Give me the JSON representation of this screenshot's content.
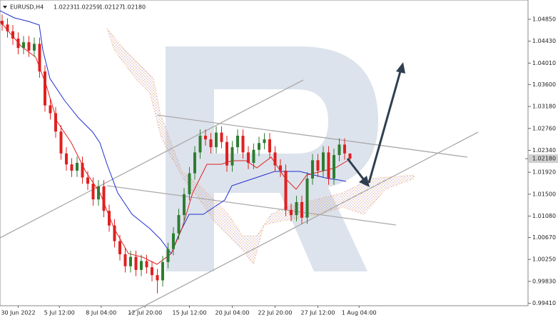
{
  "chart_data": {
    "type": "candlestick",
    "title": "EURUSD,H4",
    "quote": [
      "1.02231",
      "1.02259",
      "1.02127",
      "1.02180"
    ],
    "open": [
      1.0482,
      1.0475,
      1.0462,
      1.0448,
      1.043,
      1.0441,
      1.0425,
      1.0438,
      1.0385,
      1.032,
      1.0305,
      1.027,
      1.0228,
      1.0207,
      1.0195,
      1.021,
      1.0182,
      1.017,
      1.014,
      1.0165,
      1.0118,
      1.009,
      1.006,
      1.0035,
      1.0012,
      1.003,
      1.0005,
      1.0022,
      1.001,
      0.9995,
      0.9985,
      1.002,
      1.0045,
      1.0075,
      1.011,
      1.015,
      1.019,
      1.023,
      1.0262,
      1.0255,
      1.024,
      1.0268,
      1.025,
      1.0205,
      1.024,
      1.0262,
      1.023,
      1.021,
      1.0235,
      1.0248,
      1.0255,
      1.023,
      1.0205,
      1.0195,
      1.012,
      1.011,
      1.0135,
      1.0105,
      1.018,
      1.0215,
      1.0195,
      1.023,
      1.018,
      1.0225,
      1.0245,
      1.0228
    ],
    "high": [
      1.0494,
      1.0487,
      1.0474,
      1.046,
      1.0453,
      1.0453,
      1.045,
      1.045,
      1.0397,
      1.0332,
      1.0317,
      1.0282,
      1.024,
      1.0219,
      1.0222,
      1.0222,
      1.0194,
      1.0182,
      1.0177,
      1.0177,
      1.013,
      1.0102,
      1.0072,
      1.0047,
      1.0042,
      1.0042,
      1.0034,
      1.0034,
      1.0022,
      1.0007,
      1.0032,
      1.0057,
      1.0087,
      1.0122,
      1.0162,
      1.0202,
      1.0242,
      1.0274,
      1.0274,
      1.0267,
      1.028,
      1.028,
      1.0262,
      1.0252,
      1.0274,
      1.0274,
      1.0242,
      1.0247,
      1.026,
      1.0267,
      1.0267,
      1.0242,
      1.0217,
      1.0207,
      1.0132,
      1.0147,
      1.0147,
      1.0192,
      1.0227,
      1.0227,
      1.0242,
      1.0242,
      1.0237,
      1.0257,
      1.0257,
      1.0226
    ],
    "low": [
      1.0463,
      1.045,
      1.0436,
      1.0418,
      1.0418,
      1.0413,
      1.0413,
      1.0373,
      1.0308,
      1.0293,
      1.0258,
      1.0216,
      1.0195,
      1.0183,
      1.0183,
      1.017,
      1.0158,
      1.0128,
      1.0128,
      1.0106,
      1.0078,
      1.0048,
      1.0023,
      1.0,
      1.0,
      0.9993,
      0.9993,
      0.9998,
      0.9983,
      0.996,
      0.9973,
      1.0008,
      1.0033,
      1.0063,
      1.0098,
      1.0138,
      1.0178,
      1.0218,
      1.0243,
      1.0228,
      1.0228,
      1.0238,
      1.0193,
      1.0193,
      1.0228,
      1.0218,
      1.0198,
      1.0198,
      1.0223,
      1.0236,
      1.0218,
      1.0193,
      1.0183,
      1.0108,
      1.0098,
      1.0098,
      1.0093,
      1.0093,
      1.0168,
      1.0183,
      1.0183,
      1.0168,
      1.0168,
      1.0213,
      1.0216,
      1.0213
    ],
    "close": [
      1.0475,
      1.0462,
      1.0448,
      1.043,
      1.0441,
      1.0425,
      1.0438,
      1.0385,
      1.032,
      1.0305,
      1.027,
      1.0228,
      1.0207,
      1.0195,
      1.021,
      1.0182,
      1.017,
      1.014,
      1.0165,
      1.0118,
      1.009,
      1.006,
      1.0035,
      1.0012,
      1.003,
      1.0005,
      1.0022,
      1.001,
      0.9995,
      0.9985,
      1.002,
      1.0045,
      1.0075,
      1.011,
      1.015,
      1.019,
      1.023,
      1.0262,
      1.0255,
      1.024,
      1.0268,
      1.025,
      1.0205,
      1.024,
      1.0262,
      1.023,
      1.021,
      1.0235,
      1.0248,
      1.0255,
      1.023,
      1.0205,
      1.0195,
      1.012,
      1.011,
      1.0135,
      1.0105,
      1.018,
      1.0215,
      1.0195,
      1.023,
      1.018,
      1.0225,
      1.0245,
      1.0228,
      1.0218
    ],
    "up_color": "#2e7d32",
    "down_color": "#e02020",
    "xlim": [
      -0.4,
      98.27
    ],
    "ylim": [
      0.99364,
      1.05219
    ],
    "xticks": [
      {
        "value": 3,
        "label": "30 Jun 2022"
      },
      {
        "value": 10.7,
        "label": "5 Jul 12:00"
      },
      {
        "value": 18.5,
        "label": "8 Jul 04:00"
      },
      {
        "value": 26.7,
        "label": "12 Jul 20:00"
      },
      {
        "value": 35,
        "label": "15 Jul 12:00"
      },
      {
        "value": 43,
        "label": "20 Jul 04:00"
      },
      {
        "value": 51,
        "label": "22 Jul 20:00"
      },
      {
        "value": 59,
        "label": "27 Jul 12:00"
      },
      {
        "value": 66.7,
        "label": "1 Aug 04:00"
      }
    ],
    "yticks": [
      {
        "value": 1.0485,
        "label": "1.04850"
      },
      {
        "value": 1.0443,
        "label": "1.04430"
      },
      {
        "value": 1.0401,
        "label": "1.04010"
      },
      {
        "value": 1.036,
        "label": "1.03600"
      },
      {
        "value": 1.0318,
        "label": "1.03180"
      },
      {
        "value": 1.0276,
        "label": "1.02760"
      },
      {
        "value": 1.0234,
        "label": "1.02340"
      },
      {
        "value": 1.0192,
        "label": "1.01920"
      },
      {
        "value": 1.015,
        "label": "1.01500"
      },
      {
        "value": 1.0108,
        "label": "1.01080"
      },
      {
        "value": 1.0067,
        "label": "1.00670"
      },
      {
        "value": 1.0025,
        "label": "1.00250"
      },
      {
        "value": 0.9983,
        "label": "0.99830"
      },
      {
        "value": 0.9941,
        "label": "0.99410"
      }
    ],
    "price_label": {
      "value": 1.0218,
      "label": "1.02180"
    }
  }
}
